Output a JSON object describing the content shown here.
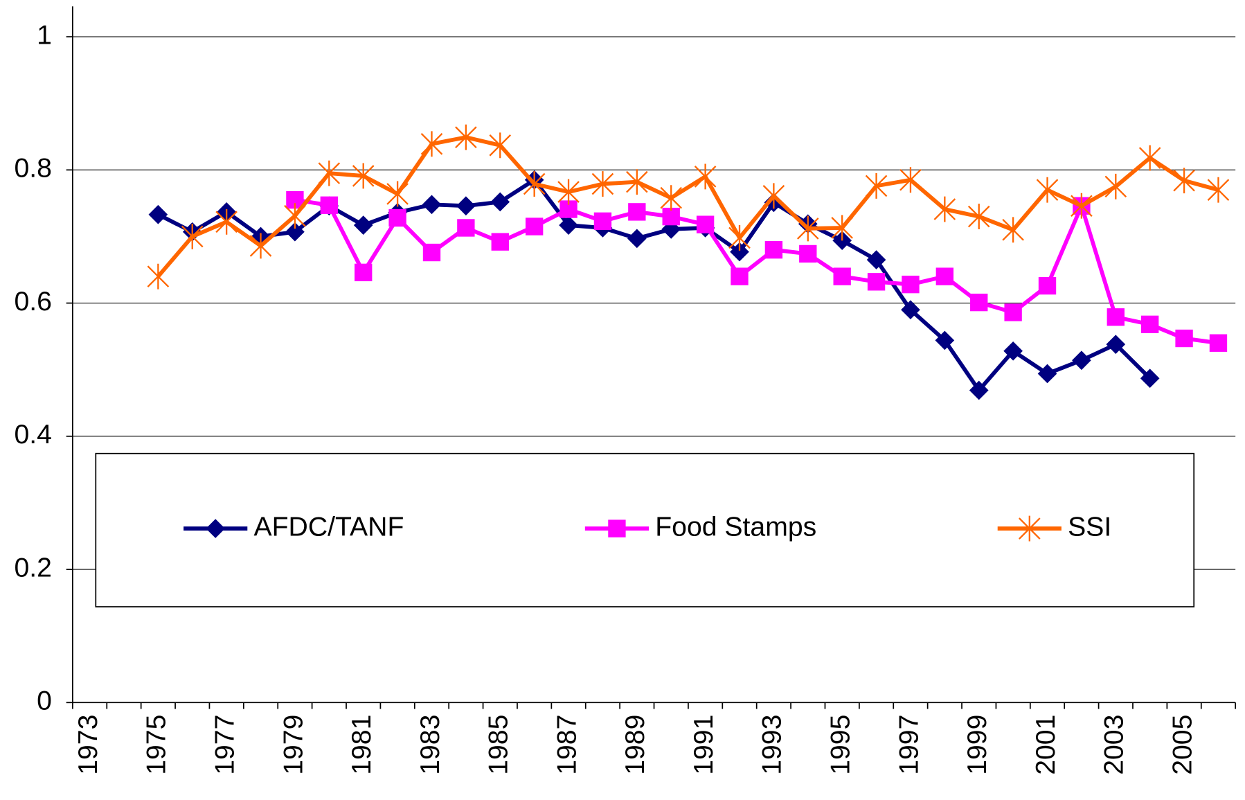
{
  "chart_data": {
    "type": "line",
    "categories": [
      "1973",
      null,
      "1975",
      null,
      "1977",
      null,
      "1979",
      null,
      "1981",
      null,
      "1983",
      null,
      "1985",
      null,
      "1987",
      null,
      "1989",
      null,
      "1991",
      null,
      "1993",
      null,
      "1995",
      null,
      "1997",
      null,
      "1999",
      null,
      "2001",
      null,
      "2003",
      null,
      "2005",
      null
    ],
    "series": [
      {
        "name": "AFDC/TANF",
        "color": "#000080",
        "marker": "diamond",
        "values": [
          null,
          null,
          0.733,
          0.707,
          0.737,
          0.7,
          0.707,
          0.746,
          0.717,
          0.736,
          0.748,
          0.746,
          0.752,
          0.785,
          0.717,
          0.713,
          0.697,
          0.711,
          0.713,
          0.677,
          0.751,
          0.719,
          0.694,
          0.665,
          0.59,
          0.544,
          0.469,
          0.528,
          0.494,
          0.514,
          0.538,
          0.487,
          null,
          null
        ]
      },
      {
        "name": "Food Stamps",
        "color": "#ff00ff",
        "marker": "square",
        "values": [
          null,
          null,
          null,
          null,
          null,
          null,
          0.755,
          0.747,
          0.646,
          0.728,
          0.676,
          0.713,
          0.692,
          0.715,
          0.741,
          0.723,
          0.737,
          0.73,
          0.718,
          0.64,
          0.68,
          0.674,
          0.64,
          0.632,
          0.628,
          0.64,
          0.601,
          0.586,
          0.626,
          0.746,
          0.579,
          0.568,
          0.547,
          0.54
        ]
      },
      {
        "name": "SSI",
        "color": "#ff6600",
        "marker": "star",
        "values": [
          null,
          null,
          0.64,
          0.7,
          0.722,
          0.686,
          0.731,
          0.795,
          0.791,
          0.764,
          0.839,
          0.849,
          0.837,
          0.779,
          0.767,
          0.779,
          0.782,
          0.758,
          0.79,
          0.698,
          0.761,
          0.712,
          0.713,
          0.776,
          0.785,
          0.741,
          0.73,
          0.71,
          0.77,
          0.746,
          0.775,
          0.818,
          0.784,
          0.77
        ]
      }
    ],
    "ylim": [
      0,
      1.04
    ],
    "yticks": [
      0,
      0.2,
      0.4,
      0.6,
      0.8,
      1
    ],
    "grid": true
  }
}
